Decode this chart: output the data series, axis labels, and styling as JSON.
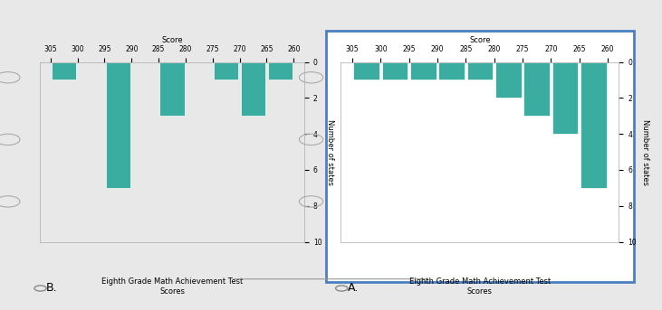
{
  "chart_A": {
    "bin_edges": [
      260,
      265,
      270,
      275,
      280,
      285,
      290,
      295,
      300,
      305
    ],
    "counts": [
      7,
      4,
      3,
      2,
      1,
      1,
      1,
      1,
      1
    ],
    "title": "Eighth Grade Math Achievement Test\nScores",
    "xlabel": "Score",
    "ylabel": "Number of states"
  },
  "chart_B": {
    "bin_edges": [
      260,
      265,
      270,
      275,
      280,
      285,
      290,
      295,
      300,
      305
    ],
    "counts": [
      1,
      3,
      1,
      0,
      3,
      0,
      7,
      0,
      1
    ],
    "title": "Eighth Grade Math Achievement Test\nScores",
    "xlabel": "Score",
    "ylabel": "Number of states"
  },
  "xlim": [
    258,
    307
  ],
  "ylim": [
    0,
    10
  ],
  "xticks": [
    260,
    265,
    270,
    275,
    280,
    285,
    290,
    295,
    300,
    305
  ],
  "yticks": [
    0,
    2,
    4,
    6,
    8,
    10
  ],
  "bar_color": "#3aada0",
  "fig_bg": "#e8e8e8",
  "panel_A_bg": "#ffffff",
  "panel_B_bg": "#e8e8e8",
  "border_color": "#4a7fc1",
  "border_lw": 2.0,
  "title_fontsize": 6.0,
  "axis_fontsize": 6.0,
  "tick_fontsize": 5.5,
  "label_A": "A.",
  "label_B": "B.",
  "radio_fontsize": 9
}
